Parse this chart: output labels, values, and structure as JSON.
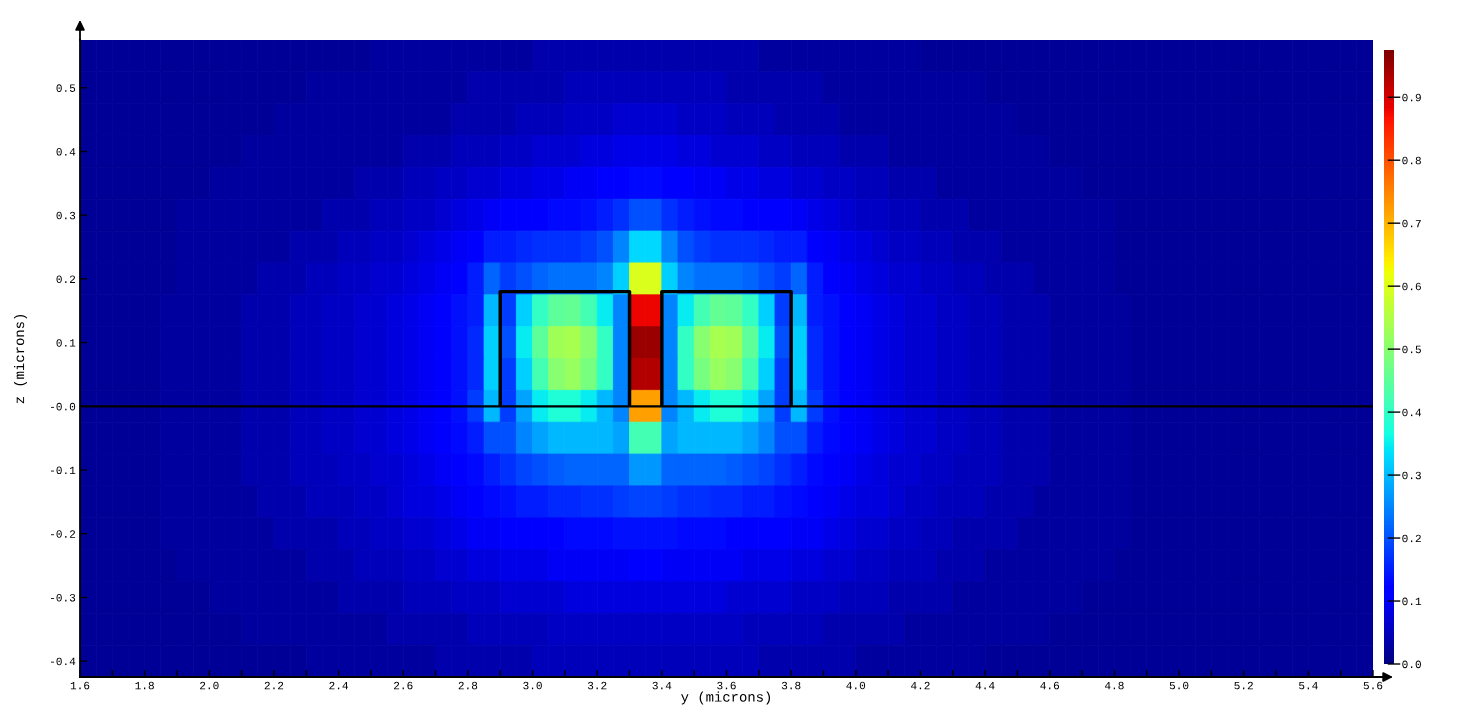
{
  "chart_data": {
    "type": "heatmap",
    "xlabel": "y (microns)",
    "ylabel": "z (microns)",
    "xlim": [
      1.6,
      5.6
    ],
    "ylim": [
      -0.425,
      0.575
    ],
    "xticks": [
      1.6,
      {
        "value": 1.7,
        "label": null
      },
      1.8,
      {
        "value": 1.9,
        "label": null
      },
      {
        "value": 2,
        "label": "2.0"
      },
      {
        "value": 2.1,
        "label": null
      },
      2.2,
      {
        "value": 2.3,
        "label": null
      },
      2.4,
      {
        "value": 2.5,
        "label": null
      },
      2.6,
      {
        "value": 2.7,
        "label": null
      },
      2.8,
      {
        "value": 2.9,
        "label": null
      },
      {
        "value": 3,
        "label": "3.0"
      },
      {
        "value": 3.1,
        "label": null
      },
      3.2,
      {
        "value": 3.3,
        "label": null
      },
      3.4,
      {
        "value": 3.5,
        "label": null
      },
      3.6,
      {
        "value": 3.7,
        "label": null
      },
      3.8,
      {
        "value": 3.9,
        "label": null
      },
      {
        "value": 4,
        "label": "4.0"
      },
      {
        "value": 4.1,
        "label": null
      },
      4.2,
      {
        "value": 4.3,
        "label": null
      },
      4.4,
      {
        "value": 4.5,
        "label": null
      },
      4.6,
      {
        "value": 4.7,
        "label": null
      },
      4.8,
      {
        "value": 4.9,
        "label": null
      },
      {
        "value": 5,
        "label": "5.0"
      },
      {
        "value": 5.1,
        "label": null
      },
      5.2,
      {
        "value": 5.3,
        "label": null
      },
      5.4,
      {
        "value": 5.5,
        "label": null
      },
      5.6
    ],
    "yticks": [
      0.5,
      0.4,
      0.3,
      0.2,
      0.1,
      {
        "value": 0,
        "label": "-0.0"
      },
      -0.1,
      -0.2,
      -0.3,
      -0.4
    ],
    "clim": [
      0,
      0.975
    ],
    "cticks": [
      {
        "value": 0,
        "label": "0.0"
      },
      0.1,
      0.2,
      0.3,
      0.4,
      0.5,
      0.6,
      0.7,
      0.8,
      0.9
    ],
    "x": [
      1.625,
      1.675,
      1.725,
      1.775,
      1.825,
      1.875,
      1.925,
      1.975,
      2.025,
      2.075,
      2.125,
      2.175,
      2.225,
      2.275,
      2.325,
      2.375,
      2.425,
      2.475,
      2.525,
      2.575,
      2.625,
      2.675,
      2.725,
      2.775,
      2.825,
      2.875,
      2.925,
      2.975,
      3.025,
      3.075,
      3.125,
      3.175,
      3.225,
      3.275,
      3.325,
      3.375,
      3.425,
      3.475,
      3.525,
      3.575,
      3.625,
      3.675,
      3.725,
      3.775,
      3.825,
      3.875,
      3.925,
      3.975,
      4.025,
      4.075,
      4.125,
      4.175,
      4.225,
      4.275,
      4.325,
      4.375,
      4.425,
      4.475,
      4.525,
      4.575,
      4.625,
      4.675,
      4.725,
      4.775,
      4.825,
      4.875,
      4.925,
      4.975,
      5.025,
      5.075,
      5.125,
      5.175,
      5.225,
      5.275,
      5.325,
      5.375,
      5.425,
      5.475,
      5.525,
      5.575
    ],
    "y": [
      0.55,
      0.5,
      0.45,
      0.4,
      0.35,
      0.3,
      0.25,
      0.2,
      0.15,
      0.1,
      0.05,
      0,
      -0.05,
      -0.1,
      -0.15,
      -0.2,
      -0.25,
      -0.3,
      -0.35,
      -0.4
    ],
    "cells": [
      [
        0.02,
        0.02,
        0.02,
        0.02,
        0.02,
        0.02,
        0.02,
        0.02,
        0.02,
        0.02,
        0.02,
        0.02,
        0.02,
        0.02,
        0.02,
        0.02,
        0.02,
        0.02,
        0.03,
        0.03,
        0.03,
        0.03,
        0.03,
        0.03,
        0.03,
        0.03,
        0.03,
        0.03,
        0.04,
        0.04,
        0.04,
        0.04,
        0.04,
        0.04,
        0.04,
        0.04,
        0.04,
        0.04,
        0.04,
        0.04,
        0.04,
        0.04,
        0.03,
        0.03,
        0.03,
        0.03,
        0.03,
        0.03,
        0.03,
        0.03,
        0.03,
        0.03,
        0.02,
        0.02,
        0.02,
        0.02,
        0.02,
        0.02,
        0.02,
        0.02,
        0.02,
        0.02,
        0.02,
        0.02,
        0.02,
        0.02,
        0.02,
        0.02,
        0.02,
        0.02,
        0.02,
        0.02,
        0.02,
        0.02,
        0.02,
        0.02,
        0.02,
        0.02,
        0.02,
        0.02
      ],
      [
        0.02,
        0.02,
        0.02,
        0.02,
        0.02,
        0.02,
        0.02,
        0.02,
        0.02,
        0.02,
        0.02,
        0.02,
        0.02,
        0.02,
        0.03,
        0.03,
        0.03,
        0.03,
        0.03,
        0.03,
        0.03,
        0.03,
        0.03,
        0.03,
        0.04,
        0.04,
        0.04,
        0.04,
        0.04,
        0.04,
        0.05,
        0.05,
        0.05,
        0.05,
        0.05,
        0.05,
        0.05,
        0.05,
        0.05,
        0.05,
        0.04,
        0.04,
        0.04,
        0.04,
        0.04,
        0.04,
        0.03,
        0.03,
        0.03,
        0.03,
        0.03,
        0.03,
        0.03,
        0.03,
        0.03,
        0.03,
        0.02,
        0.02,
        0.02,
        0.02,
        0.02,
        0.02,
        0.02,
        0.02,
        0.02,
        0.02,
        0.02,
        0.02,
        0.02,
        0.02,
        0.02,
        0.02,
        0.02,
        0.02,
        0.02,
        0.02,
        0.02,
        0.02,
        0.02,
        0.02
      ],
      [
        0.02,
        0.02,
        0.02,
        0.02,
        0.02,
        0.02,
        0.02,
        0.02,
        0.02,
        0.02,
        0.02,
        0.02,
        0.03,
        0.03,
        0.03,
        0.03,
        0.03,
        0.03,
        0.03,
        0.03,
        0.03,
        0.03,
        0.03,
        0.04,
        0.04,
        0.04,
        0.04,
        0.05,
        0.05,
        0.05,
        0.06,
        0.06,
        0.06,
        0.07,
        0.07,
        0.07,
        0.07,
        0.06,
        0.06,
        0.06,
        0.05,
        0.05,
        0.05,
        0.04,
        0.04,
        0.04,
        0.04,
        0.03,
        0.03,
        0.03,
        0.03,
        0.03,
        0.03,
        0.03,
        0.03,
        0.03,
        0.03,
        0.03,
        0.02,
        0.02,
        0.02,
        0.02,
        0.02,
        0.02,
        0.02,
        0.02,
        0.02,
        0.02,
        0.02,
        0.02,
        0.02,
        0.02,
        0.02,
        0.02,
        0.02,
        0.02,
        0.02,
        0.02,
        0.02,
        0.02
      ],
      [
        0.02,
        0.02,
        0.02,
        0.02,
        0.02,
        0.02,
        0.02,
        0.02,
        0.02,
        0.02,
        0.03,
        0.03,
        0.03,
        0.03,
        0.03,
        0.03,
        0.03,
        0.03,
        0.03,
        0.03,
        0.04,
        0.04,
        0.04,
        0.05,
        0.05,
        0.05,
        0.06,
        0.06,
        0.07,
        0.07,
        0.07,
        0.08,
        0.08,
        0.09,
        0.09,
        0.09,
        0.09,
        0.08,
        0.08,
        0.07,
        0.07,
        0.07,
        0.06,
        0.06,
        0.05,
        0.05,
        0.05,
        0.04,
        0.04,
        0.04,
        0.03,
        0.03,
        0.03,
        0.03,
        0.03,
        0.03,
        0.03,
        0.03,
        0.03,
        0.03,
        0.02,
        0.02,
        0.02,
        0.02,
        0.02,
        0.02,
        0.02,
        0.02,
        0.02,
        0.02,
        0.02,
        0.02,
        0.02,
        0.02,
        0.02,
        0.02,
        0.02,
        0.02,
        0.02,
        0.02
      ],
      [
        0.02,
        0.02,
        0.02,
        0.02,
        0.02,
        0.02,
        0.02,
        0.02,
        0.03,
        0.03,
        0.03,
        0.03,
        0.03,
        0.03,
        0.03,
        0.03,
        0.03,
        0.04,
        0.04,
        0.04,
        0.05,
        0.05,
        0.06,
        0.06,
        0.07,
        0.07,
        0.08,
        0.08,
        0.09,
        0.09,
        0.1,
        0.1,
        0.11,
        0.12,
        0.13,
        0.13,
        0.12,
        0.11,
        0.1,
        0.1,
        0.09,
        0.09,
        0.08,
        0.08,
        0.07,
        0.07,
        0.06,
        0.06,
        0.05,
        0.05,
        0.04,
        0.04,
        0.04,
        0.03,
        0.03,
        0.03,
        0.03,
        0.03,
        0.03,
        0.03,
        0.03,
        0.03,
        0.02,
        0.02,
        0.02,
        0.02,
        0.02,
        0.02,
        0.02,
        0.02,
        0.02,
        0.02,
        0.02,
        0.02,
        0.02,
        0.02,
        0.02,
        0.02,
        0.02,
        0.02
      ],
      [
        0.02,
        0.02,
        0.02,
        0.02,
        0.02,
        0.02,
        0.03,
        0.03,
        0.03,
        0.03,
        0.03,
        0.03,
        0.03,
        0.03,
        0.03,
        0.04,
        0.04,
        0.04,
        0.05,
        0.05,
        0.06,
        0.06,
        0.07,
        0.08,
        0.09,
        0.1,
        0.11,
        0.12,
        0.12,
        0.13,
        0.13,
        0.14,
        0.15,
        0.17,
        0.2,
        0.2,
        0.17,
        0.15,
        0.14,
        0.13,
        0.13,
        0.12,
        0.12,
        0.11,
        0.1,
        0.09,
        0.08,
        0.07,
        0.06,
        0.06,
        0.05,
        0.05,
        0.04,
        0.04,
        0.04,
        0.03,
        0.03,
        0.03,
        0.03,
        0.03,
        0.03,
        0.03,
        0.03,
        0.03,
        0.02,
        0.02,
        0.02,
        0.02,
        0.02,
        0.02,
        0.02,
        0.02,
        0.02,
        0.02,
        0.02,
        0.02,
        0.02,
        0.02,
        0.02,
        0.02
      ],
      [
        0.02,
        0.02,
        0.02,
        0.02,
        0.02,
        0.02,
        0.03,
        0.03,
        0.03,
        0.03,
        0.03,
        0.03,
        0.03,
        0.04,
        0.04,
        0.04,
        0.05,
        0.05,
        0.06,
        0.06,
        0.07,
        0.08,
        0.09,
        0.1,
        0.12,
        0.15,
        0.15,
        0.16,
        0.17,
        0.17,
        0.17,
        0.18,
        0.2,
        0.25,
        0.33,
        0.33,
        0.25,
        0.2,
        0.18,
        0.17,
        0.17,
        0.17,
        0.16,
        0.15,
        0.15,
        0.12,
        0.1,
        0.09,
        0.08,
        0.07,
        0.06,
        0.06,
        0.05,
        0.05,
        0.04,
        0.04,
        0.04,
        0.03,
        0.03,
        0.03,
        0.03,
        0.03,
        0.03,
        0.03,
        0.02,
        0.02,
        0.02,
        0.02,
        0.02,
        0.02,
        0.02,
        0.02,
        0.02,
        0.02,
        0.02,
        0.02,
        0.02,
        0.02,
        0.02,
        0.02
      ],
      [
        0.02,
        0.02,
        0.02,
        0.02,
        0.02,
        0.02,
        0.03,
        0.03,
        0.03,
        0.03,
        0.03,
        0.04,
        0.04,
        0.04,
        0.05,
        0.05,
        0.06,
        0.06,
        0.07,
        0.07,
        0.08,
        0.09,
        0.1,
        0.12,
        0.15,
        0.22,
        0.18,
        0.2,
        0.22,
        0.23,
        0.23,
        0.23,
        0.25,
        0.32,
        0.6,
        0.6,
        0.32,
        0.25,
        0.23,
        0.23,
        0.23,
        0.22,
        0.2,
        0.18,
        0.22,
        0.15,
        0.12,
        0.1,
        0.09,
        0.08,
        0.07,
        0.07,
        0.06,
        0.06,
        0.05,
        0.05,
        0.04,
        0.04,
        0.04,
        0.03,
        0.03,
        0.03,
        0.03,
        0.03,
        0.02,
        0.02,
        0.02,
        0.02,
        0.02,
        0.02,
        0.02,
        0.02,
        0.02,
        0.02,
        0.02,
        0.02,
        0.02,
        0.02,
        0.02,
        0.02
      ],
      [
        0.02,
        0.02,
        0.02,
        0.02,
        0.02,
        0.03,
        0.03,
        0.03,
        0.03,
        0.03,
        0.04,
        0.04,
        0.04,
        0.05,
        0.05,
        0.06,
        0.06,
        0.07,
        0.07,
        0.08,
        0.09,
        0.1,
        0.12,
        0.14,
        0.15,
        0.3,
        0.18,
        0.32,
        0.4,
        0.45,
        0.46,
        0.42,
        0.35,
        0.25,
        0.88,
        0.88,
        0.25,
        0.35,
        0.42,
        0.46,
        0.45,
        0.4,
        0.32,
        0.18,
        0.3,
        0.15,
        0.14,
        0.12,
        0.1,
        0.09,
        0.08,
        0.07,
        0.07,
        0.06,
        0.06,
        0.05,
        0.05,
        0.04,
        0.04,
        0.04,
        0.03,
        0.03,
        0.03,
        0.03,
        0.03,
        0.02,
        0.02,
        0.02,
        0.02,
        0.02,
        0.02,
        0.02,
        0.02,
        0.02,
        0.02,
        0.02,
        0.02,
        0.02,
        0.02,
        0.02
      ],
      [
        0.02,
        0.02,
        0.02,
        0.02,
        0.02,
        0.03,
        0.03,
        0.03,
        0.03,
        0.03,
        0.04,
        0.04,
        0.04,
        0.05,
        0.05,
        0.06,
        0.06,
        0.07,
        0.07,
        0.08,
        0.09,
        0.1,
        0.12,
        0.14,
        0.16,
        0.32,
        0.2,
        0.35,
        0.45,
        0.53,
        0.54,
        0.5,
        0.4,
        0.25,
        0.95,
        0.95,
        0.25,
        0.4,
        0.5,
        0.54,
        0.53,
        0.45,
        0.35,
        0.2,
        0.32,
        0.16,
        0.14,
        0.12,
        0.1,
        0.09,
        0.08,
        0.07,
        0.07,
        0.06,
        0.06,
        0.05,
        0.05,
        0.04,
        0.04,
        0.04,
        0.03,
        0.03,
        0.03,
        0.03,
        0.03,
        0.02,
        0.02,
        0.02,
        0.02,
        0.02,
        0.02,
        0.02,
        0.02,
        0.02,
        0.02,
        0.02,
        0.02,
        0.02,
        0.02,
        0.02
      ],
      [
        0.02,
        0.02,
        0.02,
        0.02,
        0.02,
        0.03,
        0.03,
        0.03,
        0.03,
        0.03,
        0.04,
        0.04,
        0.04,
        0.05,
        0.05,
        0.06,
        0.06,
        0.07,
        0.07,
        0.08,
        0.09,
        0.1,
        0.12,
        0.14,
        0.16,
        0.32,
        0.18,
        0.32,
        0.42,
        0.5,
        0.52,
        0.48,
        0.4,
        0.25,
        0.93,
        0.93,
        0.25,
        0.4,
        0.48,
        0.52,
        0.5,
        0.42,
        0.32,
        0.18,
        0.32,
        0.16,
        0.14,
        0.12,
        0.1,
        0.09,
        0.08,
        0.07,
        0.07,
        0.06,
        0.06,
        0.05,
        0.05,
        0.04,
        0.04,
        0.04,
        0.03,
        0.03,
        0.03,
        0.03,
        0.03,
        0.02,
        0.02,
        0.02,
        0.02,
        0.02,
        0.02,
        0.02,
        0.02,
        0.02,
        0.02,
        0.02,
        0.02,
        0.02,
        0.02,
        0.02
      ],
      [
        0.02,
        0.02,
        0.02,
        0.02,
        0.02,
        0.03,
        0.03,
        0.03,
        0.03,
        0.03,
        0.04,
        0.04,
        0.04,
        0.05,
        0.05,
        0.06,
        0.06,
        0.07,
        0.07,
        0.08,
        0.09,
        0.1,
        0.12,
        0.14,
        0.18,
        0.3,
        0.18,
        0.28,
        0.35,
        0.38,
        0.38,
        0.35,
        0.3,
        0.25,
        0.72,
        0.72,
        0.25,
        0.3,
        0.35,
        0.38,
        0.38,
        0.35,
        0.28,
        0.18,
        0.3,
        0.18,
        0.14,
        0.12,
        0.1,
        0.09,
        0.08,
        0.07,
        0.07,
        0.06,
        0.06,
        0.05,
        0.05,
        0.04,
        0.04,
        0.04,
        0.03,
        0.03,
        0.03,
        0.03,
        0.03,
        0.02,
        0.02,
        0.02,
        0.02,
        0.02,
        0.02,
        0.02,
        0.02,
        0.02,
        0.02,
        0.02,
        0.02,
        0.02,
        0.02,
        0.02
      ],
      [
        0.02,
        0.02,
        0.02,
        0.02,
        0.02,
        0.03,
        0.03,
        0.03,
        0.03,
        0.03,
        0.04,
        0.04,
        0.04,
        0.05,
        0.05,
        0.06,
        0.06,
        0.07,
        0.07,
        0.08,
        0.09,
        0.1,
        0.11,
        0.13,
        0.15,
        0.2,
        0.2,
        0.25,
        0.28,
        0.3,
        0.3,
        0.3,
        0.3,
        0.28,
        0.42,
        0.42,
        0.28,
        0.3,
        0.3,
        0.3,
        0.3,
        0.28,
        0.25,
        0.2,
        0.2,
        0.15,
        0.13,
        0.11,
        0.1,
        0.09,
        0.08,
        0.07,
        0.07,
        0.06,
        0.06,
        0.05,
        0.05,
        0.04,
        0.04,
        0.04,
        0.03,
        0.03,
        0.03,
        0.03,
        0.03,
        0.02,
        0.02,
        0.02,
        0.02,
        0.02,
        0.02,
        0.02,
        0.02,
        0.02,
        0.02,
        0.02,
        0.02,
        0.02,
        0.02,
        0.02
      ],
      [
        0.02,
        0.02,
        0.02,
        0.02,
        0.02,
        0.03,
        0.03,
        0.03,
        0.03,
        0.03,
        0.04,
        0.04,
        0.04,
        0.05,
        0.05,
        0.05,
        0.06,
        0.06,
        0.07,
        0.07,
        0.08,
        0.09,
        0.1,
        0.11,
        0.13,
        0.15,
        0.17,
        0.19,
        0.2,
        0.21,
        0.22,
        0.22,
        0.22,
        0.22,
        0.27,
        0.27,
        0.22,
        0.22,
        0.22,
        0.22,
        0.21,
        0.2,
        0.19,
        0.17,
        0.15,
        0.13,
        0.11,
        0.1,
        0.09,
        0.08,
        0.07,
        0.07,
        0.06,
        0.06,
        0.05,
        0.05,
        0.05,
        0.04,
        0.04,
        0.04,
        0.03,
        0.03,
        0.03,
        0.03,
        0.03,
        0.02,
        0.02,
        0.02,
        0.02,
        0.02,
        0.02,
        0.02,
        0.02,
        0.02,
        0.02,
        0.02,
        0.02,
        0.02,
        0.02,
        0.02
      ],
      [
        0.02,
        0.02,
        0.02,
        0.02,
        0.02,
        0.03,
        0.03,
        0.03,
        0.03,
        0.03,
        0.03,
        0.04,
        0.04,
        0.04,
        0.05,
        0.05,
        0.05,
        0.06,
        0.06,
        0.07,
        0.08,
        0.08,
        0.09,
        0.1,
        0.12,
        0.13,
        0.14,
        0.15,
        0.15,
        0.16,
        0.16,
        0.17,
        0.17,
        0.18,
        0.19,
        0.19,
        0.18,
        0.17,
        0.17,
        0.16,
        0.16,
        0.15,
        0.15,
        0.14,
        0.13,
        0.12,
        0.1,
        0.09,
        0.08,
        0.08,
        0.07,
        0.06,
        0.06,
        0.05,
        0.05,
        0.05,
        0.04,
        0.04,
        0.04,
        0.03,
        0.03,
        0.03,
        0.03,
        0.03,
        0.03,
        0.02,
        0.02,
        0.02,
        0.02,
        0.02,
        0.02,
        0.02,
        0.02,
        0.02,
        0.02,
        0.02,
        0.02,
        0.02,
        0.02,
        0.02
      ],
      [
        0.02,
        0.02,
        0.02,
        0.02,
        0.02,
        0.03,
        0.03,
        0.03,
        0.03,
        0.03,
        0.03,
        0.03,
        0.04,
        0.04,
        0.04,
        0.04,
        0.05,
        0.05,
        0.06,
        0.06,
        0.07,
        0.07,
        0.08,
        0.09,
        0.1,
        0.1,
        0.11,
        0.12,
        0.12,
        0.12,
        0.13,
        0.13,
        0.13,
        0.14,
        0.14,
        0.14,
        0.14,
        0.13,
        0.13,
        0.13,
        0.12,
        0.12,
        0.12,
        0.11,
        0.1,
        0.1,
        0.09,
        0.08,
        0.07,
        0.07,
        0.06,
        0.06,
        0.05,
        0.05,
        0.04,
        0.04,
        0.04,
        0.04,
        0.03,
        0.03,
        0.03,
        0.03,
        0.03,
        0.03,
        0.03,
        0.02,
        0.02,
        0.02,
        0.02,
        0.02,
        0.02,
        0.02,
        0.02,
        0.02,
        0.02,
        0.02,
        0.02,
        0.02,
        0.02,
        0.02
      ],
      [
        0.02,
        0.02,
        0.02,
        0.02,
        0.02,
        0.02,
        0.03,
        0.03,
        0.03,
        0.03,
        0.03,
        0.03,
        0.03,
        0.03,
        0.04,
        0.04,
        0.04,
        0.05,
        0.05,
        0.05,
        0.06,
        0.06,
        0.07,
        0.07,
        0.08,
        0.08,
        0.09,
        0.09,
        0.09,
        0.1,
        0.1,
        0.1,
        0.1,
        0.1,
        0.11,
        0.11,
        0.1,
        0.1,
        0.1,
        0.1,
        0.1,
        0.09,
        0.09,
        0.09,
        0.08,
        0.08,
        0.07,
        0.07,
        0.06,
        0.06,
        0.05,
        0.05,
        0.05,
        0.04,
        0.04,
        0.04,
        0.03,
        0.03,
        0.03,
        0.03,
        0.03,
        0.03,
        0.03,
        0.03,
        0.02,
        0.02,
        0.02,
        0.02,
        0.02,
        0.02,
        0.02,
        0.02,
        0.02,
        0.02,
        0.02,
        0.02,
        0.02,
        0.02,
        0.02,
        0.02
      ],
      [
        0.02,
        0.02,
        0.02,
        0.02,
        0.02,
        0.02,
        0.02,
        0.02,
        0.03,
        0.03,
        0.03,
        0.03,
        0.03,
        0.03,
        0.03,
        0.03,
        0.04,
        0.04,
        0.04,
        0.04,
        0.05,
        0.05,
        0.05,
        0.06,
        0.06,
        0.06,
        0.07,
        0.07,
        0.07,
        0.07,
        0.08,
        0.08,
        0.08,
        0.08,
        0.08,
        0.08,
        0.08,
        0.08,
        0.08,
        0.08,
        0.07,
        0.07,
        0.07,
        0.07,
        0.06,
        0.06,
        0.06,
        0.05,
        0.05,
        0.05,
        0.04,
        0.04,
        0.04,
        0.04,
        0.03,
        0.03,
        0.03,
        0.03,
        0.03,
        0.03,
        0.03,
        0.03,
        0.02,
        0.02,
        0.02,
        0.02,
        0.02,
        0.02,
        0.02,
        0.02,
        0.02,
        0.02,
        0.02,
        0.02,
        0.02,
        0.02,
        0.02,
        0.02,
        0.02,
        0.02
      ],
      [
        0.02,
        0.02,
        0.02,
        0.02,
        0.02,
        0.02,
        0.02,
        0.02,
        0.02,
        0.02,
        0.03,
        0.03,
        0.03,
        0.03,
        0.03,
        0.03,
        0.03,
        0.03,
        0.03,
        0.04,
        0.04,
        0.04,
        0.04,
        0.04,
        0.05,
        0.05,
        0.05,
        0.05,
        0.05,
        0.06,
        0.06,
        0.06,
        0.06,
        0.06,
        0.06,
        0.06,
        0.06,
        0.06,
        0.06,
        0.06,
        0.06,
        0.05,
        0.05,
        0.05,
        0.05,
        0.05,
        0.04,
        0.04,
        0.04,
        0.04,
        0.04,
        0.03,
        0.03,
        0.03,
        0.03,
        0.03,
        0.03,
        0.03,
        0.03,
        0.03,
        0.02,
        0.02,
        0.02,
        0.02,
        0.02,
        0.02,
        0.02,
        0.02,
        0.02,
        0.02,
        0.02,
        0.02,
        0.02,
        0.02,
        0.02,
        0.02,
        0.02,
        0.02,
        0.02,
        0.02
      ],
      [
        0.02,
        0.02,
        0.02,
        0.02,
        0.02,
        0.02,
        0.02,
        0.02,
        0.02,
        0.02,
        0.02,
        0.02,
        0.02,
        0.02,
        0.03,
        0.03,
        0.03,
        0.03,
        0.03,
        0.03,
        0.03,
        0.03,
        0.04,
        0.04,
        0.04,
        0.04,
        0.04,
        0.04,
        0.05,
        0.05,
        0.05,
        0.05,
        0.05,
        0.05,
        0.05,
        0.05,
        0.05,
        0.05,
        0.05,
        0.05,
        0.05,
        0.05,
        0.04,
        0.04,
        0.04,
        0.04,
        0.04,
        0.04,
        0.03,
        0.03,
        0.03,
        0.03,
        0.03,
        0.03,
        0.03,
        0.03,
        0.02,
        0.02,
        0.02,
        0.02,
        0.02,
        0.02,
        0.02,
        0.02,
        0.02,
        0.02,
        0.02,
        0.02,
        0.02,
        0.02,
        0.02,
        0.02,
        0.02,
        0.02,
        0.02,
        0.02,
        0.02,
        0.02,
        0.02,
        0.02
      ]
    ],
    "series": [
      {
        "type": "line",
        "color": "#000000",
        "x": [
          2.9,
          2.9,
          3.3,
          3.3
        ],
        "values": [
          0,
          0.18,
          0.18,
          0
        ]
      },
      {
        "type": "line",
        "color": "#000000",
        "x": [
          3.4,
          3.4,
          3.8,
          3.8
        ],
        "values": [
          0,
          0.18,
          0.18,
          0
        ]
      }
    ],
    "ref_lines": [
      {
        "axis": "y",
        "value": 0,
        "color": "#000000"
      }
    ]
  }
}
